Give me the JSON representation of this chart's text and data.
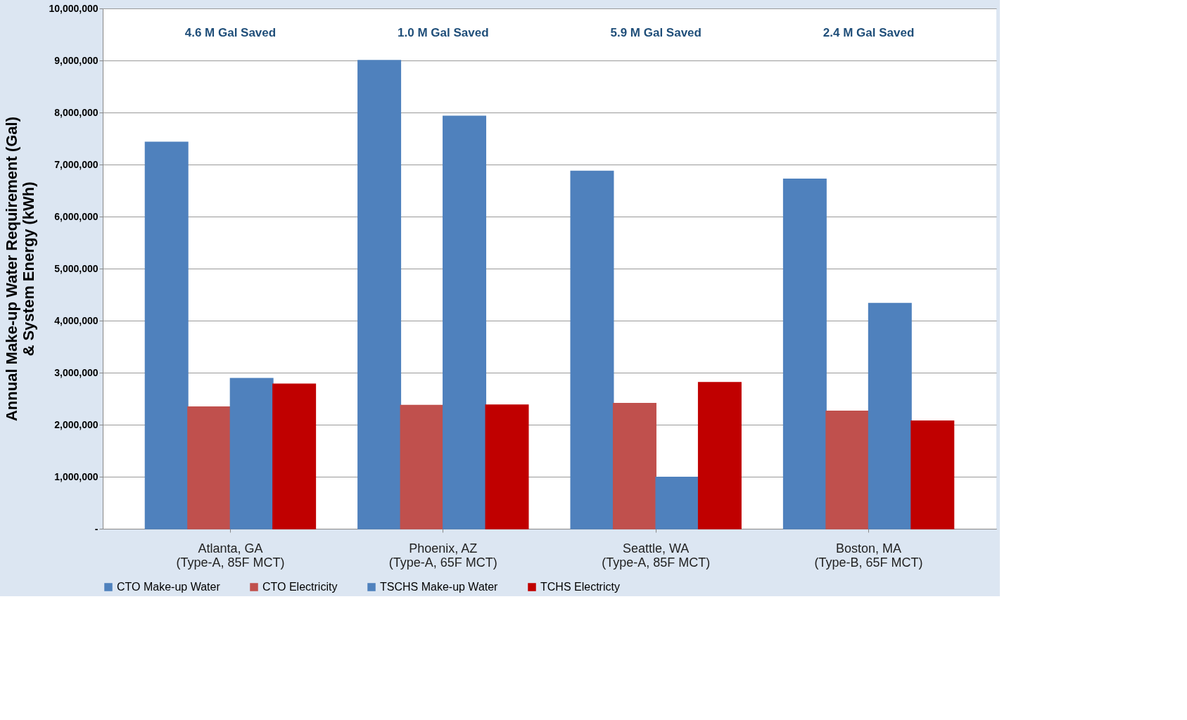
{
  "chart_data": {
    "type": "bar",
    "ylabel": "Annual Make-up Water Requirement (Gal) & System Energy (kWh)",
    "categories": [
      "Atlanta, GA (Type-A, 85F MCT)",
      "Phoenix, AZ (Type-A, 65F MCT)",
      "Seattle, WA (Type-A, 85F MCT)",
      "Boston, MA (Type-B, 65F MCT)"
    ],
    "series": [
      {
        "name": "CTO Make-up Water",
        "color": "#4f81bd",
        "values": [
          7430000,
          9000000,
          6870000,
          6720000
        ]
      },
      {
        "name": "CTO Electricity",
        "color": "#c0504d",
        "values": [
          2340000,
          2370000,
          2410000,
          2260000
        ]
      },
      {
        "name": "TSCHS Make-up Water",
        "color": "#4f81bd",
        "values": [
          2890000,
          7930000,
          990000,
          4330000
        ]
      },
      {
        "name": "TCHS Electricty",
        "color": "#c00000",
        "values": [
          2780000,
          2380000,
          2810000,
          2070000
        ]
      }
    ],
    "ylim": [
      0,
      10000000
    ],
    "yticks": [
      {
        "value": 0,
        "label": "-"
      },
      {
        "value": 1000000,
        "label": "1,000,000"
      },
      {
        "value": 2000000,
        "label": "2,000,000"
      },
      {
        "value": 3000000,
        "label": "3,000,000"
      },
      {
        "value": 4000000,
        "label": "4,000,000"
      },
      {
        "value": 5000000,
        "label": "5,000,000"
      },
      {
        "value": 6000000,
        "label": "6,000,000"
      },
      {
        "value": 7000000,
        "label": "7,000,000"
      },
      {
        "value": 8000000,
        "label": "8,000,000"
      },
      {
        "value": 9000000,
        "label": "9,000,000"
      },
      {
        "value": 10000000,
        "label": "10,000,000"
      }
    ],
    "annotations": [
      "4.6 M Gal Saved",
      "1.0 M Gal Saved",
      "5.9 M Gal Saved",
      "2.4 M Gal Saved"
    ],
    "grid": "y",
    "legend": "bottom"
  }
}
